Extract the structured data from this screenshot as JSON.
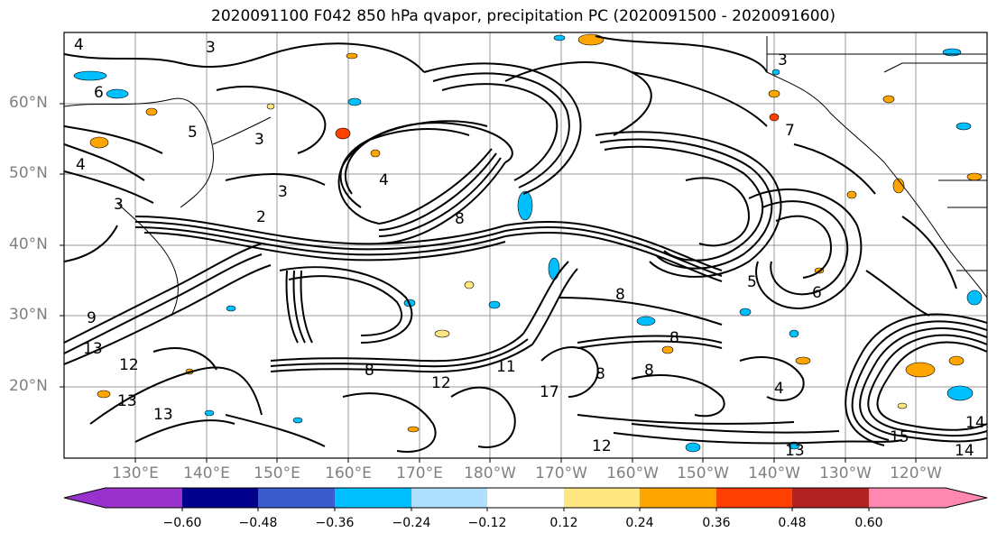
{
  "title": "2020091100 F042 850 hPa qvapor, precipitation PC (2020091500 - 2020091600)",
  "lat_labels": [
    "60°N",
    "50°N",
    "40°N",
    "30°N",
    "20°N"
  ],
  "lon_labels": [
    "130°E",
    "140°E",
    "150°E",
    "160°E",
    "170°E",
    "180°W",
    "170°W",
    "160°W",
    "150°W",
    "140°W",
    "130°W",
    "120°W"
  ],
  "colorbar": {
    "colors": [
      "#9932cc",
      "#00008b",
      "#3a5ccc",
      "#00bfff",
      "#b0e0ff",
      "#ffffff",
      "#ffe680",
      "#ffa500",
      "#ff4000",
      "#b22222",
      "#ff88b0"
    ],
    "tick_labels": [
      "−0.60",
      "−0.48",
      "−0.36",
      "−0.24",
      "−0.12",
      "0.12",
      "0.24",
      "0.36",
      "0.48",
      "0.60"
    ]
  },
  "contour_labels": [
    "4",
    "3",
    "6",
    "4",
    "3",
    "8",
    "5",
    "3",
    "4",
    "3",
    "2",
    "9",
    "13",
    "12",
    "13",
    "13",
    "11",
    "8",
    "12",
    "17",
    "8",
    "8",
    "8",
    "8",
    "7",
    "3",
    "4",
    "6",
    "5",
    "12",
    "15",
    "13",
    "14",
    "14"
  ]
}
